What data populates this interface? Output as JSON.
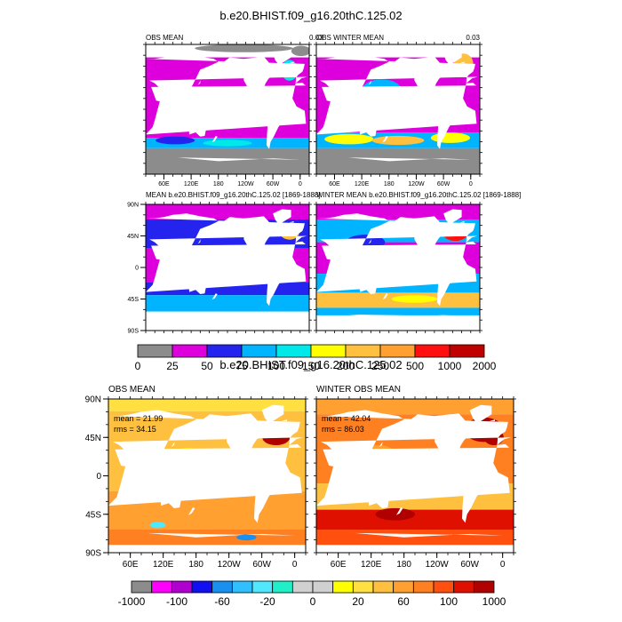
{
  "figure": {
    "title_top": "b.e20.BHIST.f09_g16.20thC.125.02",
    "title_bottom": "b.e20.BHIST.f09_g16.20thC.125.02"
  },
  "colors": {
    "land_obs": "#8c8c8c",
    "ocean_blank": "#ffffff"
  },
  "chart_data": [
    {
      "type": "heatmap",
      "title": "OBS MEAN",
      "corner_value": "0.03",
      "x_tick_labels": [
        "60E",
        "120E",
        "180",
        "120W",
        "60W",
        "0"
      ],
      "y_tick_labels": [],
      "colorbar_ref": "top"
    },
    {
      "type": "heatmap",
      "title": "OBS WINTER MEAN",
      "corner_value": "0.03",
      "x_tick_labels": [
        "60E",
        "120E",
        "180",
        "120W",
        "60W",
        "0"
      ],
      "y_tick_labels": [],
      "colorbar_ref": "top"
    },
    {
      "type": "heatmap",
      "title": "MEAN b.e20.BHIST.f09_g16.20thC.125.02 [1869-1888]",
      "x_tick_labels": [],
      "y_tick_labels": [
        "90N",
        "45N",
        "0",
        "45S",
        "90S"
      ],
      "colorbar_ref": "top"
    },
    {
      "type": "heatmap",
      "title": "WINTER MEAN b.e20.BHIST.f09_g16.20thC.125.02 [1869-1888]",
      "x_tick_labels": [],
      "y_tick_labels": [],
      "colorbar_ref": "top"
    },
    {
      "type": "heatmap",
      "title": "OBS MEAN",
      "stats": [
        "mean = 21.99",
        "rms = 34.15"
      ],
      "x_tick_labels": [
        "60E",
        "120E",
        "180",
        "120W",
        "60W",
        "0"
      ],
      "y_tick_labels": [
        "90N",
        "45N",
        "0",
        "45S",
        "90S"
      ],
      "colorbar_ref": "bottom"
    },
    {
      "type": "heatmap",
      "title": "WINTER OBS MEAN",
      "stats": [
        "mean = 42.04",
        "rms = 86.03"
      ],
      "x_tick_labels": [
        "60E",
        "120E",
        "180",
        "120W",
        "60W",
        "0"
      ],
      "y_tick_labels": [],
      "colorbar_ref": "bottom"
    }
  ],
  "colorbars": {
    "top": {
      "labels": [
        "0",
        "25",
        "50",
        "75",
        "100",
        "150",
        "200",
        "250",
        "500",
        "1000",
        "2000"
      ],
      "colors": [
        "#8c8c8c",
        "#dd00dd",
        "#2424ee",
        "#00b4ff",
        "#00e8e8",
        "#ffff00",
        "#ffc040",
        "#ffa030",
        "#ff1010",
        "#c00000"
      ]
    },
    "bottom": {
      "labels": [
        "-1000",
        "-100",
        "-60",
        "-20",
        "0",
        "20",
        "60",
        "100",
        "1000"
      ],
      "colors": [
        "#8c8c8c",
        "#ff00ff",
        "#b000d0",
        "#1010f0",
        "#1890f0",
        "#30c0ff",
        "#50e8ff",
        "#20f0c8",
        "#d0d0d0",
        "#d0d0d0",
        "#ffff00",
        "#ffe040",
        "#ffc040",
        "#ffa030",
        "#ff8020",
        "#ff5010",
        "#e01000",
        "#b00000"
      ]
    }
  }
}
